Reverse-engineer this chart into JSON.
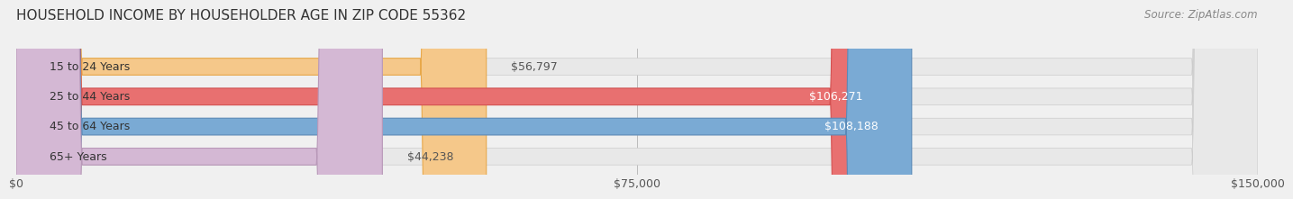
{
  "title": "HOUSEHOLD INCOME BY HOUSEHOLDER AGE IN ZIP CODE 55362",
  "source": "Source: ZipAtlas.com",
  "categories": [
    "15 to 24 Years",
    "25 to 44 Years",
    "45 to 64 Years",
    "65+ Years"
  ],
  "values": [
    56797,
    106271,
    108188,
    44238
  ],
  "bar_colors": [
    "#f5c88a",
    "#e87070",
    "#7aaad4",
    "#d4b8d4"
  ],
  "bar_edge_colors": [
    "#e8a84a",
    "#d45050",
    "#5a8ab8",
    "#b898b8"
  ],
  "label_colors": [
    "#555555",
    "#ffffff",
    "#ffffff",
    "#555555"
  ],
  "bar_height": 0.55,
  "xlim": [
    0,
    150000
  ],
  "xticks": [
    0,
    75000,
    150000
  ],
  "xtick_labels": [
    "$0",
    "$75,000",
    "$150,000"
  ],
  "background_color": "#f0f0f0",
  "bar_bg_color": "#e8e8e8",
  "title_fontsize": 11,
  "source_fontsize": 8.5,
  "label_fontsize": 9,
  "tick_fontsize": 9,
  "category_fontsize": 9
}
